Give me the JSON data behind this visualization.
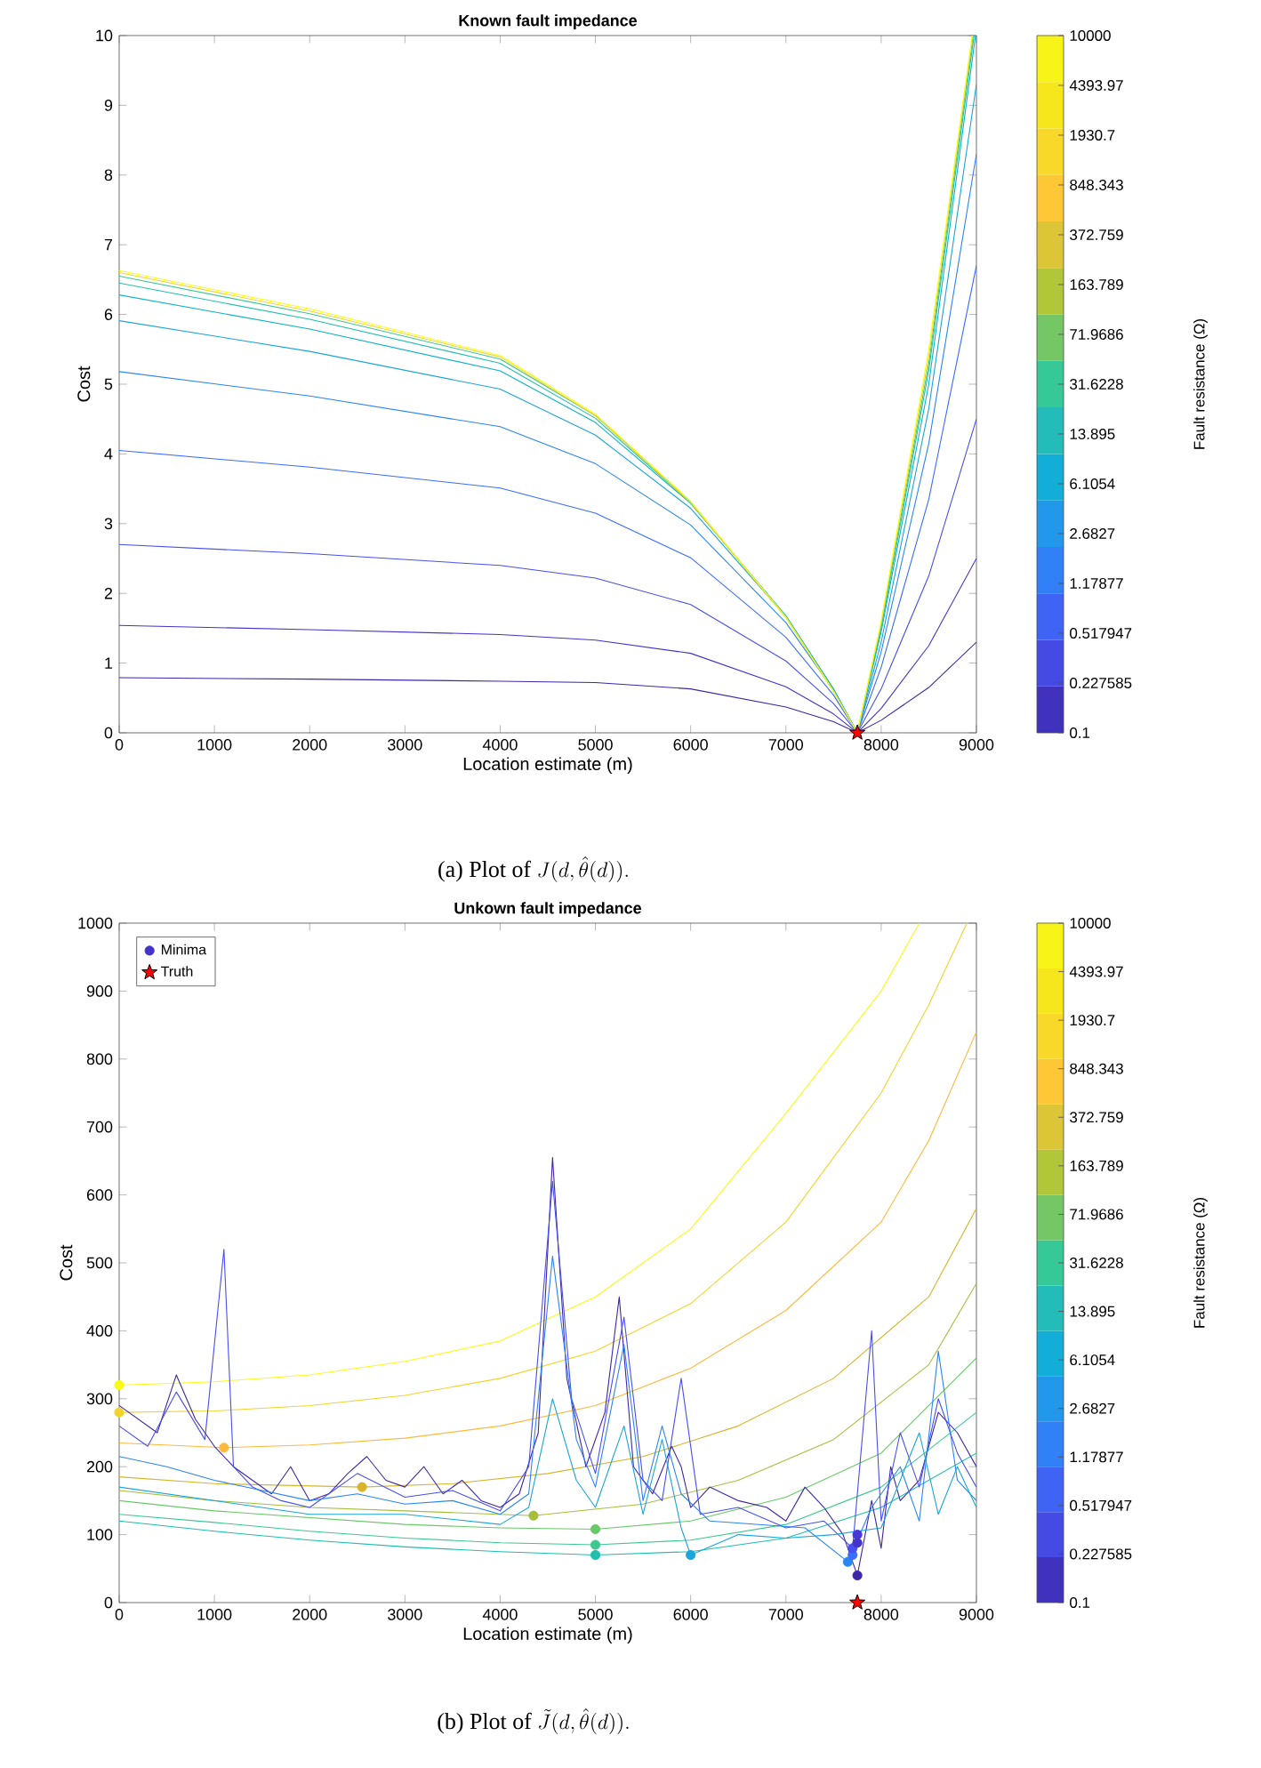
{
  "chart_data": [
    {
      "type": "line",
      "title": "Known fault impedance",
      "xlabel": "Location estimate (m)",
      "ylabel": "Cost",
      "clabel": "Fault resistance (Ω)",
      "annotations": [
        "(a) Plot of",
        "J(d,\\hat{\\theta}(d)).",
        "0.1",
        "0.227585",
        "0.517947",
        "1.17877",
        "2.6827",
        "6.1054",
        "13.895",
        "31.6228",
        "71.9686",
        "163.789",
        "372.759",
        "848.343",
        "1930.7",
        "4393.97",
        "10000"
      ],
      "xlim": [
        0,
        9000
      ],
      "xticks": [
        0,
        1000,
        2000,
        3000,
        4000,
        5000,
        6000,
        7000,
        8000,
        9000
      ],
      "ylim": [
        0,
        10
      ],
      "yticks": [
        0,
        1,
        2,
        3,
        4,
        5,
        6,
        7,
        8,
        9,
        10
      ],
      "series": [
        {
          "color": "#3e26a8",
          "x": [
            0,
            2000,
            4000,
            5000,
            6000,
            7000,
            7500,
            7750,
            8000,
            8500,
            9000
          ],
          "values": [
            0.79,
            0.77,
            0.74,
            0.72,
            0.63,
            0.37,
            0.16,
            0,
            0.18,
            0.65,
            1.3
          ]
        },
        {
          "color": "#4433cb",
          "x": [
            0,
            2000,
            4000,
            5000,
            6000,
            7000,
            7500,
            7750,
            8000,
            8500,
            9000
          ],
          "values": [
            1.54,
            1.48,
            1.41,
            1.33,
            1.14,
            0.66,
            0.27,
            0,
            0.35,
            1.25,
            2.5
          ]
        },
        {
          "color": "#4750ee",
          "x": [
            0,
            2000,
            4000,
            5000,
            6000,
            7000,
            7500,
            7750,
            8000,
            8500,
            9000
          ],
          "values": [
            2.7,
            2.57,
            2.4,
            2.22,
            1.84,
            1.03,
            0.42,
            0,
            0.63,
            2.25,
            4.5
          ]
        },
        {
          "color": "#3a6dfd",
          "x": [
            0,
            2000,
            4000,
            5000,
            6000,
            7000,
            7500,
            7750,
            8000,
            8500,
            9000
          ],
          "values": [
            4.05,
            3.81,
            3.51,
            3.15,
            2.51,
            1.37,
            0.54,
            0,
            0.94,
            3.35,
            6.7
          ]
        },
        {
          "color": "#2b85f4",
          "x": [
            0,
            2000,
            4000,
            5000,
            6000,
            7000,
            7500,
            7750,
            8000,
            8500,
            9000
          ],
          "values": [
            5.18,
            4.83,
            4.39,
            3.86,
            2.98,
            1.58,
            0.61,
            0,
            1.16,
            4.15,
            8.3
          ]
        },
        {
          "color": "#1aa5dc",
          "x": [
            0,
            2000,
            4000,
            5000,
            6000,
            7000,
            7500,
            7750,
            8000,
            8500,
            9000
          ],
          "values": [
            5.91,
            5.47,
            4.93,
            4.27,
            3.22,
            1.67,
            0.63,
            0,
            1.3,
            4.65,
            9.3
          ]
        },
        {
          "color": "#0db3c8",
          "x": [
            0,
            2000,
            4000,
            5000,
            6000,
            7000,
            7500,
            7750,
            8000,
            8500,
            8990
          ],
          "values": [
            6.28,
            5.79,
            5.19,
            4.45,
            3.29,
            1.68,
            0.62,
            0,
            1.45,
            5.0,
            10
          ]
        },
        {
          "color": "#21bfac",
          "x": [
            0,
            2000,
            4000,
            5000,
            6000,
            7000,
            7500,
            7750,
            8000,
            8500,
            8975
          ],
          "values": [
            6.45,
            5.93,
            5.3,
            4.51,
            3.3,
            1.67,
            0.61,
            0,
            1.5,
            5.2,
            10
          ]
        },
        {
          "color": "#3cc890",
          "x": [
            0,
            2000,
            4000,
            5000,
            6000,
            7000,
            7500,
            7750,
            8000,
            8500,
            8965
          ],
          "values": [
            6.55,
            6.01,
            5.36,
            4.55,
            3.31,
            1.66,
            0.6,
            0,
            1.55,
            5.3,
            10
          ]
        },
        {
          "color": "#f0d72a",
          "x": [
            0,
            2000,
            4000,
            5000,
            6000,
            7000,
            7500,
            7750,
            8000,
            8500,
            8960
          ],
          "values": [
            6.6,
            6.05,
            5.39,
            4.55,
            3.3,
            1.65,
            0.59,
            0,
            1.58,
            5.4,
            10
          ]
        },
        {
          "color": "#f9fb15",
          "x": [
            0,
            2000,
            4000,
            5000,
            6000,
            7000,
            7500,
            7750,
            8000,
            8500,
            8955
          ],
          "values": [
            6.63,
            6.08,
            5.41,
            4.57,
            3.32,
            1.66,
            0.6,
            0,
            1.6,
            5.5,
            10
          ]
        },
        {
          "type": "scatter",
          "marker": "star",
          "color": "#ff0000",
          "x": [
            7750
          ],
          "values": [
            0
          ]
        }
      ]
    },
    {
      "type": "line",
      "title": "Unkown fault impedance",
      "xlabel": "Location estimate (m)",
      "ylabel": "Cost",
      "clabel": "Fault resistance (Ω)",
      "legend": "top left",
      "annotations": [
        "(b) Plot of",
        "\\tilde{J}(d,\\hat{\\theta}(d)).",
        "0.1",
        "0.227585",
        "0.517947",
        "1.17877",
        "2.6827",
        "6.1054",
        "13.895",
        "31.6228",
        "71.9686",
        "163.789",
        "372.759",
        "848.343",
        "1930.7",
        "4393.97",
        "10000"
      ],
      "xlim": [
        0,
        9000
      ],
      "xticks": [
        0,
        1000,
        2000,
        3000,
        4000,
        5000,
        6000,
        7000,
        8000,
        9000
      ],
      "ylim": [
        0,
        1000
      ],
      "yticks": [
        0,
        100,
        200,
        300,
        400,
        500,
        600,
        700,
        800,
        900,
        1000
      ],
      "series": [
        {
          "color": "#f9fb15",
          "x": [
            0,
            1000,
            2000,
            3000,
            4000,
            5000,
            6000,
            7000,
            8000,
            8400
          ],
          "values": [
            320,
            325,
            335,
            355,
            385,
            450,
            550,
            720,
            900,
            1000
          ]
        },
        {
          "color": "#f1d42a",
          "x": [
            0,
            1000,
            2000,
            3000,
            4000,
            5000,
            6000,
            7000,
            8000,
            8500,
            8900
          ],
          "values": [
            280,
            282,
            290,
            305,
            330,
            370,
            440,
            560,
            750,
            880,
            1000
          ]
        },
        {
          "color": "#fcb93c",
          "x": [
            0,
            1100,
            2000,
            3000,
            4000,
            5000,
            6000,
            7000,
            8000,
            8500,
            9000
          ],
          "values": [
            235,
            228,
            232,
            242,
            260,
            290,
            345,
            430,
            560,
            680,
            840
          ]
        },
        {
          "color": "#d6b52b",
          "x": [
            0,
            1000,
            2550,
            3500,
            4500,
            5500,
            6500,
            7500,
            8500,
            9000
          ],
          "values": [
            185,
            175,
            170,
            175,
            190,
            215,
            260,
            330,
            450,
            580
          ]
        },
        {
          "color": "#a5be3b",
          "x": [
            0,
            1000,
            2000,
            3000,
            4350,
            5500,
            6500,
            7500,
            8500,
            9000
          ],
          "values": [
            165,
            150,
            140,
            135,
            128,
            145,
            180,
            240,
            350,
            470
          ]
        },
        {
          "color": "#6bc86a",
          "x": [
            0,
            1000,
            2000,
            3000,
            4000,
            5000,
            6000,
            7000,
            8000,
            9000
          ],
          "values": [
            150,
            135,
            125,
            115,
            110,
            108,
            120,
            155,
            220,
            360
          ]
        },
        {
          "color": "#3cc890",
          "x": [
            0,
            1000,
            2000,
            3000,
            4000,
            5000,
            6000,
            7000,
            8000,
            9000
          ],
          "values": [
            130,
            118,
            105,
            95,
            88,
            85,
            92,
            115,
            170,
            280
          ]
        },
        {
          "color": "#1fbfad",
          "x": [
            0,
            1000,
            2000,
            3000,
            4000,
            5000,
            6000,
            7000,
            8000,
            9000
          ],
          "values": [
            120,
            105,
            92,
            82,
            75,
            70,
            75,
            95,
            140,
            220
          ]
        },
        {
          "color": "#3e26a8",
          "x": [
            0,
            200,
            400,
            600,
            800,
            1000,
            1200,
            1400,
            1600,
            1800,
            2000,
            2200,
            2400,
            2600,
            2800,
            3000,
            3200,
            3400,
            3600,
            3800,
            4000,
            4200,
            4400,
            4550,
            4700,
            4900,
            5100,
            5250,
            5400,
            5600,
            5800,
            5900,
            6000,
            6200,
            6500,
            6800,
            7000,
            7200,
            7400,
            7600,
            7750,
            7900,
            8000,
            8100,
            8200,
            8400,
            8600,
            8800,
            9000
          ],
          "values": [
            290,
            270,
            250,
            335,
            270,
            230,
            200,
            180,
            160,
            200,
            150,
            160,
            190,
            215,
            180,
            170,
            200,
            160,
            180,
            150,
            140,
            160,
            250,
            655,
            330,
            200,
            280,
            450,
            200,
            160,
            230,
            200,
            140,
            170,
            150,
            140,
            120,
            170,
            140,
            100,
            40,
            150,
            80,
            200,
            150,
            180,
            280,
            250,
            200
          ]
        },
        {
          "color": "#4750ee",
          "x": [
            0,
            300,
            600,
            900,
            1100,
            1200,
            1400,
            1700,
            2000,
            2500,
            3000,
            3500,
            4000,
            4300,
            4550,
            4750,
            5000,
            5300,
            5500,
            5700,
            5900,
            6100,
            6500,
            7000,
            7400,
            7700,
            7900,
            8000,
            8200,
            8400,
            8600,
            8800,
            9000
          ],
          "values": [
            260,
            230,
            310,
            240,
            520,
            200,
            170,
            150,
            140,
            190,
            155,
            165,
            135,
            200,
            620,
            300,
            190,
            420,
            180,
            150,
            330,
            130,
            140,
            110,
            120,
            80,
            400,
            120,
            250,
            170,
            300,
            220,
            170
          ]
        },
        {
          "color": "#2b85f4",
          "x": [
            0,
            500,
            1000,
            1500,
            2000,
            2500,
            3000,
            3500,
            4000,
            4300,
            4550,
            4800,
            5000,
            5300,
            5500,
            5700,
            5900,
            6200,
            6700,
            7200,
            7650,
            7900,
            8200,
            8400,
            8600,
            8800,
            9000
          ],
          "values": [
            215,
            200,
            180,
            165,
            150,
            160,
            145,
            150,
            130,
            160,
            510,
            240,
            170,
            380,
            150,
            260,
            160,
            120,
            115,
            110,
            60,
            140,
            200,
            120,
            370,
            180,
            150
          ]
        },
        {
          "color": "#1aa5dc",
          "x": [
            0,
            1000,
            2000,
            3000,
            4000,
            4300,
            4550,
            4800,
            5000,
            5300,
            5500,
            5700,
            5900,
            6000,
            6500,
            7000,
            7500,
            8000,
            8400,
            8600,
            8800,
            9000
          ],
          "values": [
            170,
            150,
            130,
            130,
            115,
            140,
            300,
            180,
            140,
            260,
            130,
            240,
            110,
            70,
            100,
            95,
            100,
            110,
            250,
            130,
            200,
            140
          ]
        },
        {
          "type": "scatter",
          "marker": "circle",
          "name": "Minima",
          "color": "#4433cb",
          "x": [
            0,
            0,
            1100,
            2550,
            4350,
            5000,
            5000,
            5000,
            6000,
            7650,
            7700,
            7700,
            7750,
            7750,
            7750
          ],
          "values": [
            320,
            280,
            228,
            170,
            128,
            108,
            85,
            70,
            70,
            60,
            70,
            80,
            88,
            100,
            40
          ],
          "colors": [
            "#f9fb15",
            "#f1d42a",
            "#fcb93c",
            "#d6b52b",
            "#a5be3b",
            "#6bc86a",
            "#3cc890",
            "#1fbfad",
            "#1aa5dc",
            "#2b85f4",
            "#3a6dfd",
            "#4750ee",
            "#4433cb",
            "#4538d6",
            "#3e26a8"
          ]
        },
        {
          "type": "scatter",
          "marker": "star",
          "name": "Truth",
          "color": "#ff0000",
          "x": [
            7750
          ],
          "values": [
            0
          ]
        }
      ]
    }
  ]
}
